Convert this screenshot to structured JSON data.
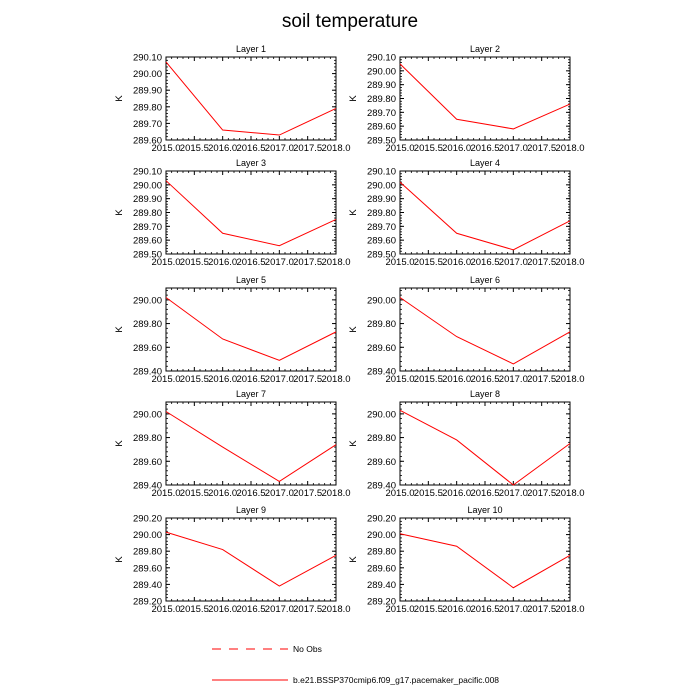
{
  "title": "soil temperature",
  "legend": {
    "obs_label": "No Obs",
    "model_label": "b.e21.BSSP370cmip6.f09_g17.pacemaker_pacific.008",
    "obs_color": "#ff0000",
    "model_color": "#ff0000"
  },
  "chart_data": [
    {
      "type": "line",
      "title": "Layer 1",
      "ylabel": "K",
      "xlim": [
        2015.0,
        2018.0
      ],
      "xticks": [
        "2015.0",
        "2015.5",
        "2016.0",
        "2016.5",
        "2017.0",
        "2017.5",
        "2018.0"
      ],
      "ylim": [
        289.6,
        290.1
      ],
      "yticks": [
        "289.60",
        "289.70",
        "289.80",
        "289.90",
        "290.00",
        "290.10"
      ],
      "series": [
        {
          "x": [
            2015.0,
            2016.0,
            2017.0,
            2018.0
          ],
          "values": [
            290.07,
            289.66,
            289.63,
            289.79
          ]
        }
      ]
    },
    {
      "type": "line",
      "title": "Layer 2",
      "ylabel": "K",
      "xlim": [
        2015.0,
        2018.0
      ],
      "xticks": [
        "2015.0",
        "2015.5",
        "2016.0",
        "2016.5",
        "2017.0",
        "2017.5",
        "2018.0"
      ],
      "ylim": [
        289.5,
        290.1
      ],
      "yticks": [
        "289.50",
        "289.60",
        "289.70",
        "289.80",
        "289.90",
        "290.00",
        "290.10"
      ],
      "series": [
        {
          "x": [
            2015.0,
            2016.0,
            2017.0,
            2018.0
          ],
          "values": [
            290.05,
            289.65,
            289.58,
            289.76
          ]
        }
      ]
    },
    {
      "type": "line",
      "title": "Layer 3",
      "ylabel": "K",
      "xlim": [
        2015.0,
        2018.0
      ],
      "xticks": [
        "2015.0",
        "2015.5",
        "2016.0",
        "2016.5",
        "2017.0",
        "2017.5",
        "2018.0"
      ],
      "ylim": [
        289.5,
        290.1
      ],
      "yticks": [
        "289.50",
        "289.60",
        "289.70",
        "289.80",
        "289.90",
        "290.00",
        "290.10"
      ],
      "series": [
        {
          "x": [
            2015.0,
            2016.0,
            2017.0,
            2018.0
          ],
          "values": [
            290.03,
            289.65,
            289.56,
            289.75
          ]
        }
      ]
    },
    {
      "type": "line",
      "title": "Layer 4",
      "ylabel": "K",
      "xlim": [
        2015.0,
        2018.0
      ],
      "xticks": [
        "2015.0",
        "2015.5",
        "2016.0",
        "2016.5",
        "2017.0",
        "2017.5",
        "2018.0"
      ],
      "ylim": [
        289.5,
        290.1
      ],
      "yticks": [
        "289.50",
        "289.60",
        "289.70",
        "289.80",
        "289.90",
        "290.00",
        "290.10"
      ],
      "series": [
        {
          "x": [
            2015.0,
            2016.0,
            2017.0,
            2018.0
          ],
          "values": [
            290.02,
            289.65,
            289.53,
            289.74
          ]
        }
      ]
    },
    {
      "type": "line",
      "title": "Layer 5",
      "ylabel": "K",
      "xlim": [
        2015.0,
        2018.0
      ],
      "xticks": [
        "2015.0",
        "2015.5",
        "2016.0",
        "2016.5",
        "2017.0",
        "2017.5",
        "2018.0"
      ],
      "ylim": [
        289.4,
        290.1
      ],
      "yticks": [
        "289.40",
        "289.60",
        "289.80",
        "290.00"
      ],
      "series": [
        {
          "x": [
            2015.0,
            2016.0,
            2017.0,
            2018.0
          ],
          "values": [
            290.02,
            289.67,
            289.49,
            289.73
          ]
        }
      ]
    },
    {
      "type": "line",
      "title": "Layer 6",
      "ylabel": "K",
      "xlim": [
        2015.0,
        2018.0
      ],
      "xticks": [
        "2015.0",
        "2015.5",
        "2016.0",
        "2016.5",
        "2017.0",
        "2017.5",
        "2018.0"
      ],
      "ylim": [
        289.4,
        290.1
      ],
      "yticks": [
        "289.40",
        "289.60",
        "289.80",
        "290.00"
      ],
      "series": [
        {
          "x": [
            2015.0,
            2016.0,
            2017.0,
            2018.0
          ],
          "values": [
            290.02,
            289.69,
            289.46,
            289.73
          ]
        }
      ]
    },
    {
      "type": "line",
      "title": "Layer 7",
      "ylabel": "K",
      "xlim": [
        2015.0,
        2018.0
      ],
      "xticks": [
        "2015.0",
        "2015.5",
        "2016.0",
        "2016.5",
        "2017.0",
        "2017.5",
        "2018.0"
      ],
      "ylim": [
        289.4,
        290.1
      ],
      "yticks": [
        "289.40",
        "289.60",
        "289.80",
        "290.00"
      ],
      "series": [
        {
          "x": [
            2015.0,
            2016.0,
            2017.0,
            2018.0
          ],
          "values": [
            290.02,
            289.72,
            289.43,
            289.74
          ]
        }
      ]
    },
    {
      "type": "line",
      "title": "Layer 8",
      "ylabel": "K",
      "xlim": [
        2015.0,
        2018.0
      ],
      "xticks": [
        "2015.0",
        "2015.5",
        "2016.0",
        "2016.5",
        "2017.0",
        "2017.5",
        "2018.0"
      ],
      "ylim": [
        289.4,
        290.1
      ],
      "yticks": [
        "289.40",
        "289.60",
        "289.80",
        "290.00"
      ],
      "series": [
        {
          "x": [
            2015.0,
            2016.0,
            2017.0,
            2018.0
          ],
          "values": [
            290.03,
            289.78,
            289.4,
            289.75
          ]
        }
      ]
    },
    {
      "type": "line",
      "title": "Layer 9",
      "ylabel": "K",
      "xlim": [
        2015.0,
        2018.0
      ],
      "xticks": [
        "2015.0",
        "2015.5",
        "2016.0",
        "2016.5",
        "2017.0",
        "2017.5",
        "2018.0"
      ],
      "ylim": [
        289.2,
        290.2
      ],
      "yticks": [
        "289.20",
        "289.40",
        "289.60",
        "289.80",
        "290.00",
        "290.20"
      ],
      "series": [
        {
          "x": [
            2015.0,
            2016.0,
            2017.0,
            2018.0
          ],
          "values": [
            290.03,
            289.82,
            289.38,
            289.75
          ]
        }
      ]
    },
    {
      "type": "line",
      "title": "Layer 10",
      "ylabel": "K",
      "xlim": [
        2015.0,
        2018.0
      ],
      "xticks": [
        "2015.0",
        "2015.5",
        "2016.0",
        "2016.5",
        "2017.0",
        "2017.5",
        "2018.0"
      ],
      "ylim": [
        289.2,
        290.2
      ],
      "yticks": [
        "289.20",
        "289.40",
        "289.60",
        "289.80",
        "290.00",
        "290.20"
      ],
      "series": [
        {
          "x": [
            2015.0,
            2016.0,
            2017.0,
            2018.0
          ],
          "values": [
            290.01,
            289.86,
            289.36,
            289.75
          ]
        }
      ]
    }
  ]
}
